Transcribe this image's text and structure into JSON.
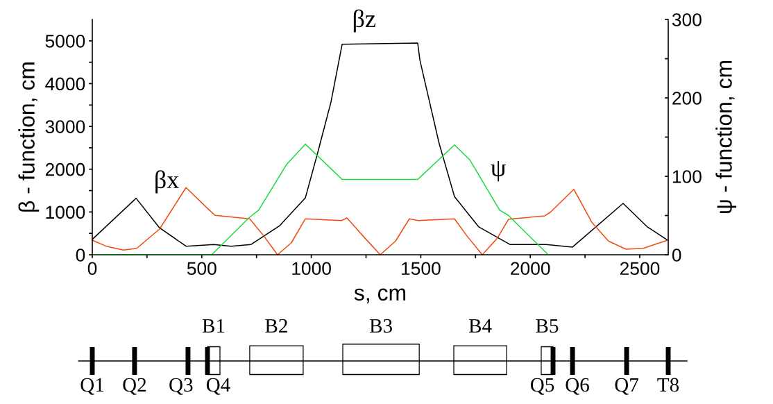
{
  "chart_data": {
    "type": "line",
    "xlabel": "s, cm",
    "ylabel": "β - function, cm",
    "y2label": "ψ - function, cm",
    "xlim": [
      0,
      2630
    ],
    "ylim": [
      0,
      5500
    ],
    "y2lim": [
      0,
      300
    ],
    "xticks": [
      0,
      {
        "value": 250,
        "label": null
      },
      500,
      {
        "value": 750,
        "label": null
      },
      1000,
      {
        "value": 1250,
        "label": null
      },
      1500,
      {
        "value": 1750,
        "label": null
      },
      2000,
      {
        "value": 2250,
        "label": null
      },
      2500
    ],
    "yticks": [
      0,
      {
        "value": 500,
        "label": null
      },
      1000,
      {
        "value": 1500,
        "label": null
      },
      2000,
      {
        "value": 2500,
        "label": null
      },
      3000,
      {
        "value": 3500,
        "label": null
      },
      4000,
      {
        "value": 4500,
        "label": null
      },
      5000
    ],
    "y2ticks": [
      0,
      {
        "value": 50,
        "label": null
      },
      100,
      {
        "value": 150,
        "label": null
      },
      200,
      {
        "value": 250,
        "label": null
      },
      300
    ],
    "grid": false,
    "marker": "none",
    "line_style": "solid",
    "series": [
      {
        "color": "#000000",
        "x": [
          0,
          200,
          307,
          428,
          555,
          634,
          725,
          856,
          973,
          1027,
          1090,
          1141,
          1486,
          1496,
          1584,
          1654,
          1765,
          1907,
          2072,
          2193,
          2424,
          2535,
          2627
        ],
        "values": [
          360,
          1320,
          630,
          200,
          240,
          200,
          240,
          680,
          1330,
          2340,
          3570,
          4920,
          4950,
          4550,
          2600,
          1360,
          650,
          240,
          240,
          180,
          1200,
          650,
          340
        ]
      },
      {
        "color": "#f04a10",
        "x": [
          0,
          63,
          143,
          203,
          307,
          428,
          535,
          561,
          719,
          783,
          846,
          909,
          973,
          1138,
          1163,
          1236,
          1315,
          1385,
          1448,
          1489,
          1654,
          1711,
          1781,
          1850,
          1901,
          2066,
          2091,
          2199,
          2281,
          2357,
          2437,
          2516,
          2627
        ],
        "values": [
          340,
          200,
          110,
          150,
          600,
          1570,
          1040,
          920,
          840,
          440,
          0,
          280,
          840,
          800,
          860,
          440,
          0,
          320,
          840,
          800,
          840,
          440,
          0,
          390,
          830,
          910,
          990,
          1530,
          760,
          320,
          130,
          150,
          340
        ]
      },
      {
        "color": "#20d840",
        "axis": "y2",
        "x": [
          0,
          545,
          719,
          760,
          887,
          973,
          1141,
          1486,
          1654,
          1724,
          1860,
          1901,
          2082
        ],
        "values": [
          0,
          0,
          48,
          57,
          115,
          141,
          96,
          96,
          140,
          121,
          57,
          50,
          0
        ]
      }
    ],
    "annotations": [
      "βz",
      "βx",
      "ψ",
      "Q1",
      "Q2",
      "Q3",
      "Q4",
      "B1",
      "B2",
      "B3",
      "B4",
      "B5",
      "Q5",
      "Q6",
      "Q7",
      "T8"
    ]
  }
}
